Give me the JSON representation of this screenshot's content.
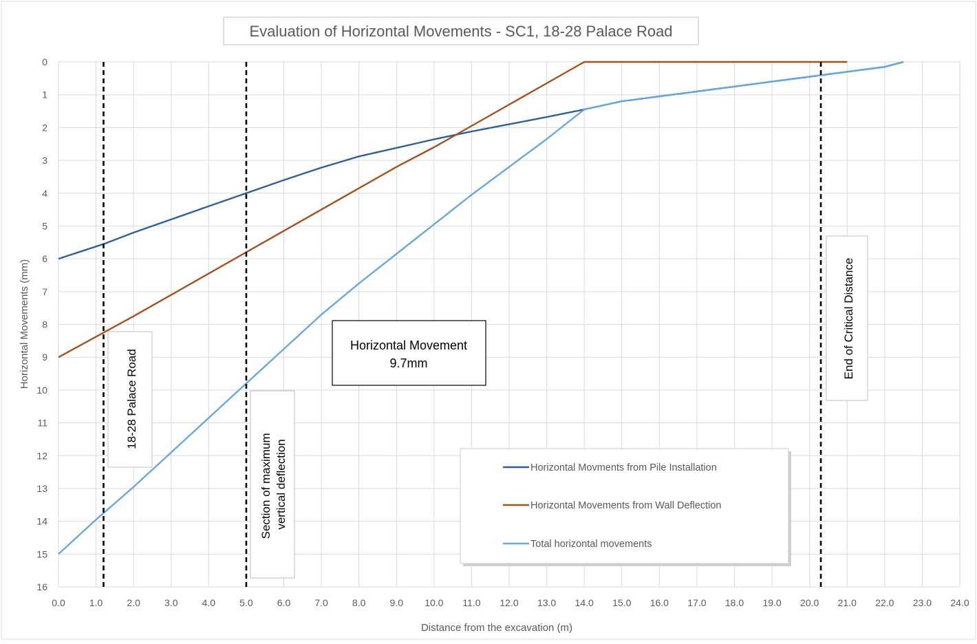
{
  "chart_data": {
    "type": "line",
    "title": "Evaluation of Horizontal Movements - SC1, 18-28 Palace Road",
    "xlabel": "Distance from the excavation (m)",
    "ylabel": "Horizontal Movements (mm)",
    "xlim": [
      0,
      24
    ],
    "ylim": [
      16,
      0
    ],
    "y_axis_inverted": true,
    "grid": true,
    "legend_position": "bottom-right",
    "x_ticks": [
      "0.0",
      "1.0",
      "2.0",
      "3.0",
      "4.0",
      "5.0",
      "6.0",
      "7.0",
      "8.0",
      "9.0",
      "10.0",
      "11.0",
      "12.0",
      "13.0",
      "14.0",
      "15.0",
      "16.0",
      "17.0",
      "18.0",
      "19.0",
      "20.0",
      "21.0",
      "22.0",
      "23.0",
      "24.0"
    ],
    "y_ticks": [
      "0",
      "1",
      "2",
      "3",
      "4",
      "5",
      "6",
      "7",
      "8",
      "9",
      "10",
      "11",
      "12",
      "13",
      "14",
      "15",
      "16"
    ],
    "series": [
      {
        "name": "Horizontal Movments from Pile Installation",
        "color": "#2e6096",
        "points": [
          [
            0,
            6.0
          ],
          [
            1.2,
            5.55
          ],
          [
            2,
            5.2
          ],
          [
            3,
            4.8
          ],
          [
            4,
            4.4
          ],
          [
            5,
            4.0
          ],
          [
            6,
            3.6
          ],
          [
            7,
            3.22
          ],
          [
            8,
            2.88
          ],
          [
            9,
            2.62
          ],
          [
            10,
            2.36
          ],
          [
            11,
            2.12
          ],
          [
            12,
            1.9
          ],
          [
            13,
            1.68
          ],
          [
            14,
            1.45
          ],
          [
            15,
            1.2
          ],
          [
            16,
            1.05
          ],
          [
            17,
            0.9
          ],
          [
            18,
            0.75
          ],
          [
            19,
            0.6
          ],
          [
            20,
            0.45
          ],
          [
            21,
            0.3
          ],
          [
            22,
            0.15
          ],
          [
            22.5,
            0.0
          ]
        ]
      },
      {
        "name": "Horizontal Movements from Wall Deflection",
        "color": "#a5501f",
        "points": [
          [
            0,
            9.0
          ],
          [
            1.2,
            8.25
          ],
          [
            2,
            7.75
          ],
          [
            3,
            7.1
          ],
          [
            4,
            6.45
          ],
          [
            5,
            5.8
          ],
          [
            6,
            5.15
          ],
          [
            7,
            4.5
          ],
          [
            8,
            3.85
          ],
          [
            9,
            3.2
          ],
          [
            10,
            2.6
          ],
          [
            11,
            1.95
          ],
          [
            12,
            1.3
          ],
          [
            13,
            0.65
          ],
          [
            14,
            0.0
          ],
          [
            21,
            0.0
          ]
        ]
      },
      {
        "name": "Total horizontal movements",
        "color": "#6ba6d9",
        "points": [
          [
            0,
            15.0
          ],
          [
            1,
            13.95
          ],
          [
            2,
            12.95
          ],
          [
            3,
            11.9
          ],
          [
            4,
            10.85
          ],
          [
            5,
            9.8
          ],
          [
            6,
            8.75
          ],
          [
            7,
            7.7
          ],
          [
            8,
            6.75
          ],
          [
            9,
            5.85
          ],
          [
            10,
            4.95
          ],
          [
            11,
            4.05
          ],
          [
            12,
            3.2
          ],
          [
            13,
            2.35
          ],
          [
            14,
            1.45
          ],
          [
            15,
            1.2
          ],
          [
            16,
            1.05
          ],
          [
            17,
            0.9
          ],
          [
            18,
            0.75
          ],
          [
            19,
            0.6
          ],
          [
            20,
            0.45
          ],
          [
            21,
            0.3
          ],
          [
            22,
            0.15
          ],
          [
            22.5,
            0.0
          ]
        ]
      }
    ],
    "reference_lines": [
      {
        "x": 1.2,
        "label": "18-28 Palace Road"
      },
      {
        "x": 5.0,
        "label": "Section of maximum\nvertical deflection"
      },
      {
        "x": 20.3,
        "label": "End of Critical Distance"
      }
    ],
    "annotations": [
      {
        "text_line1": "Horizontal Movement",
        "text_line2": "9.7mm"
      }
    ]
  }
}
